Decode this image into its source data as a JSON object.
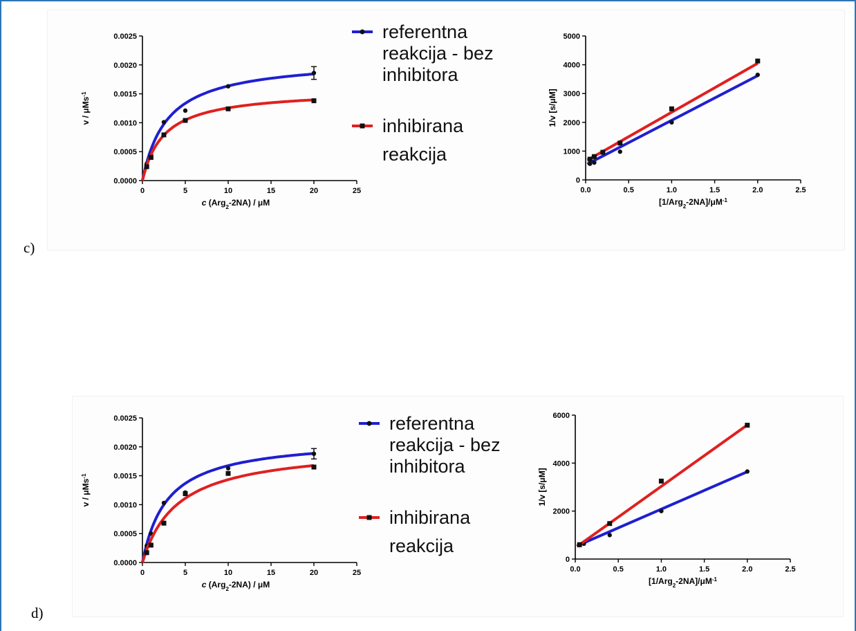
{
  "panels": [
    {
      "label": "c)",
      "legend": {
        "ref": [
          "referentna",
          "reakcija - bez",
          "inhibitora"
        ],
        "inh": [
          "inhibirana",
          "reakcija"
        ]
      },
      "mm": {
        "ylabel": "v / μMs",
        "ylabel_sup": "-1",
        "xlabel_prefix": "c",
        "xlabel_main": " (Arg",
        "xlabel_sub": "2",
        "xlabel_rest": "-2NA) / μM",
        "xlim": [
          0,
          25
        ],
        "ylim": [
          0,
          0.0025
        ],
        "xticks": [
          "0",
          "5",
          "10",
          "15",
          "20",
          "25"
        ],
        "yticks": [
          "0.0000",
          "0.0005",
          "0.0010",
          "0.0015",
          "0.0020",
          "0.0025"
        ],
        "series": [
          {
            "color": "#1f1fd0",
            "marker": "circle",
            "vmax": 0.00211,
            "km": 2.9,
            "points": [
              [
                0.5,
                0.00029
              ],
              [
                1,
                0.00045
              ],
              [
                2.5,
                0.00101
              ],
              [
                5,
                0.00121
              ],
              [
                10,
                0.00163
              ],
              [
                20,
                0.00186
              ]
            ],
            "error": [
              [
                20,
                0.00011
              ]
            ]
          },
          {
            "color": "#e02020",
            "marker": "square",
            "vmax": 0.00157,
            "km": 2.5,
            "points": [
              [
                0.5,
                0.00024
              ],
              [
                1,
                0.0004
              ],
              [
                2.5,
                0.00079
              ],
              [
                5,
                0.00104
              ],
              [
                10,
                0.00124
              ],
              [
                20,
                0.00138
              ]
            ],
            "error": []
          }
        ]
      },
      "lb": {
        "ylabel": "1/v [s/μM]",
        "xlabel_main": "[1/Arg",
        "xlabel_sub": "2",
        "xlabel_rest": "-2NA]/μM",
        "xlabel_sup": "-1",
        "xlim": [
          0,
          2.5
        ],
        "ylim": [
          0,
          5000
        ],
        "xticks": [
          "0.0",
          "0.5",
          "1.0",
          "1.5",
          "2.0",
          "2.5"
        ],
        "yticks": [
          "0",
          "1000",
          "2000",
          "3000",
          "4000",
          "5000"
        ],
        "series": [
          {
            "color": "#1f1fd0",
            "marker": "circle",
            "slope": 1550,
            "intercept": 520,
            "points": [
              [
                0.05,
                560
              ],
              [
                0.1,
                600
              ],
              [
                0.4,
                980
              ],
              [
                1,
                2000
              ],
              [
                2,
                3650
              ]
            ]
          },
          {
            "color": "#e02020",
            "marker": "square",
            "slope": 1700,
            "intercept": 650,
            "points": [
              [
                0.05,
                720
              ],
              [
                0.1,
                810
              ],
              [
                0.2,
                960
              ],
              [
                0.4,
                1280
              ],
              [
                1,
                2470
              ],
              [
                2,
                4130
              ]
            ]
          }
        ]
      }
    },
    {
      "label": "d)",
      "legend": {
        "ref": [
          "referentna",
          "reakcija - bez",
          "inhibitora"
        ],
        "inh": [
          "inhibirana",
          "reakcija"
        ]
      },
      "mm": {
        "ylabel": "v / μMs",
        "ylabel_sup": "-1",
        "xlabel_prefix": "c",
        "xlabel_main": " (Arg",
        "xlabel_sub": "2",
        "xlabel_rest": "-2NA) / μM",
        "xlim": [
          0,
          25
        ],
        "ylim": [
          0,
          0.0025
        ],
        "xticks": [
          "0",
          "5",
          "10",
          "15",
          "20",
          "25"
        ],
        "yticks": [
          "0.0000",
          "0.0005",
          "0.0010",
          "0.0015",
          "0.0020",
          "0.0025"
        ],
        "series": [
          {
            "color": "#1f1fd0",
            "marker": "circle",
            "vmax": 0.00216,
            "km": 2.9,
            "points": [
              [
                0.5,
                0.00029
              ],
              [
                1,
                0.0005
              ],
              [
                2.5,
                0.00103
              ],
              [
                5,
                0.00121
              ],
              [
                10,
                0.00163
              ],
              [
                20,
                0.00188
              ]
            ],
            "error": [
              [
                20,
                9e-05
              ]
            ]
          },
          {
            "color": "#e02020",
            "marker": "square",
            "vmax": 0.00202,
            "km": 4.1,
            "points": [
              [
                0.5,
                0.00017
              ],
              [
                1,
                0.0003
              ],
              [
                2.5,
                0.00068
              ],
              [
                5,
                0.00119
              ],
              [
                10,
                0.00154
              ],
              [
                20,
                0.00165
              ]
            ],
            "error": []
          }
        ]
      },
      "lb": {
        "ylabel": "1/v [s/μM]",
        "xlabel_main": "[1/Arg",
        "xlabel_sub": "2",
        "xlabel_rest": "-2NA]/μM",
        "xlabel_sup": "-1",
        "xlim": [
          0,
          2.5
        ],
        "ylim": [
          0,
          6000
        ],
        "xticks": [
          "0.0",
          "0.5",
          "1.0",
          "1.5",
          "2.0",
          "2.5"
        ],
        "yticks": [
          "0",
          "2000",
          "4000",
          "6000"
        ],
        "series": [
          {
            "color": "#1f1fd0",
            "marker": "circle",
            "slope": 1560,
            "intercept": 520,
            "points": [
              [
                0.05,
                580
              ],
              [
                0.1,
                640
              ],
              [
                0.4,
                1000
              ],
              [
                1,
                2000
              ],
              [
                2,
                3650
              ]
            ]
          },
          {
            "color": "#e02020",
            "marker": "square",
            "slope": 2560,
            "intercept": 470,
            "points": [
              [
                0.05,
                600
              ],
              [
                0.4,
                1480
              ],
              [
                1,
                3250
              ],
              [
                2,
                5580
              ]
            ]
          }
        ]
      }
    }
  ]
}
